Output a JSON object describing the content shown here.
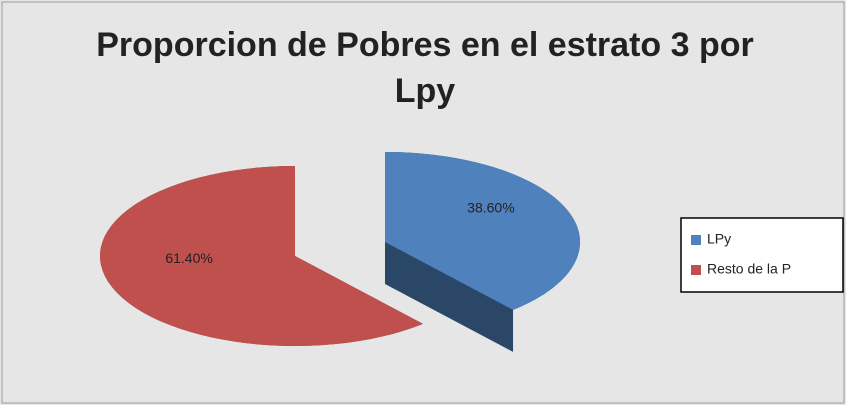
{
  "chart_data": {
    "type": "pie",
    "title": "Proporcion de Pobres en el estrato 3 por Lpy",
    "categories": [
      "LPy",
      "Resto de la P"
    ],
    "values": [
      38.6,
      61.4
    ],
    "value_labels": [
      "38.60%",
      "61.40%"
    ],
    "colors": [
      "#4f81bd",
      "#c0504d"
    ],
    "legend": "right"
  }
}
